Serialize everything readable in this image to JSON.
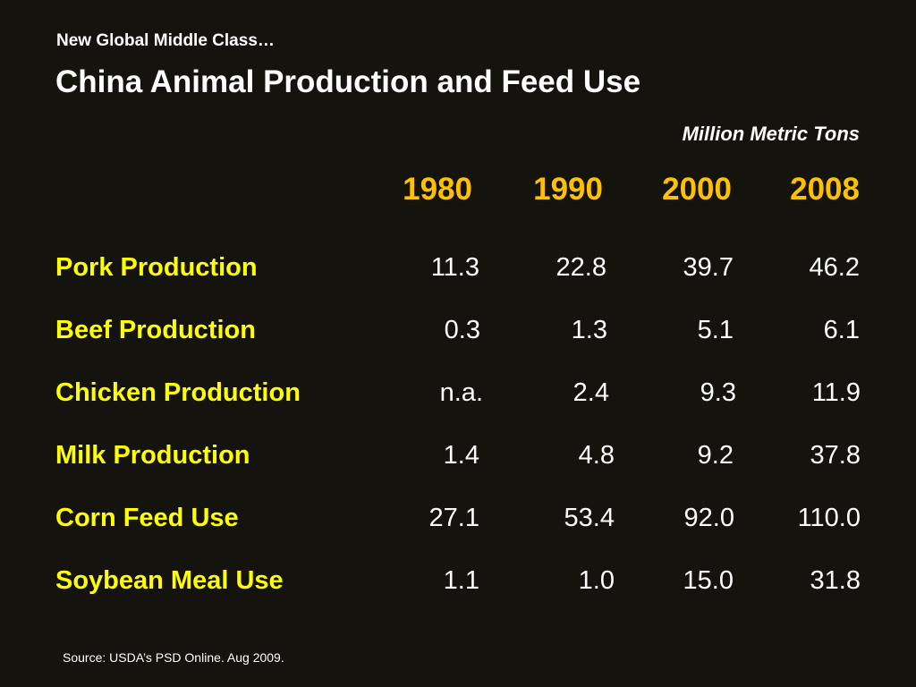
{
  "slide": {
    "supertitle": "New Global Middle Class…",
    "title": "China Animal Production and Feed Use",
    "units": "Million Metric Tons",
    "source": "Source: USDA’s PSD Online. Aug 2009."
  },
  "table": {
    "years": [
      "1980",
      "1990",
      "2000",
      "2008"
    ],
    "rows": [
      {
        "label": "Pork Production",
        "values": [
          "11.3",
          "22.8",
          "39.7",
          "46.2"
        ]
      },
      {
        "label": "Beef Production",
        "values": [
          "0.3",
          "1.3",
          "5.1",
          "6.1"
        ]
      },
      {
        "label": "Chicken Production",
        "values": [
          "n.a.",
          "2.4",
          "9.3",
          "11.9"
        ]
      },
      {
        "label": "Milk Production",
        "values": [
          "1.4",
          "4.8",
          "9.2",
          "37.8"
        ]
      },
      {
        "label": "Corn Feed Use",
        "values": [
          "27.1",
          "53.4",
          "92.0",
          "110.0"
        ]
      },
      {
        "label": "Soybean Meal Use",
        "values": [
          "1.1",
          "1.0",
          "15.0",
          "31.8"
        ]
      }
    ]
  },
  "colors": {
    "background": "#14130e",
    "year_header": "#ffc000",
    "row_label": "#ffff00",
    "text": "#ffffff"
  }
}
